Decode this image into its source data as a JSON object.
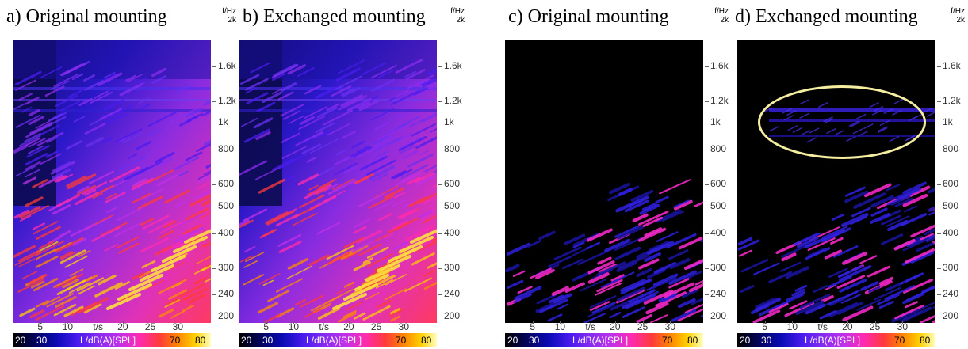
{
  "titles": [
    "a) Original mounting",
    "b) Exchanged mounting",
    "c) Original mounting",
    "d) Exchanged mounting"
  ],
  "axis": {
    "y_unit_top": "f/Hz",
    "y_unit_bottom": "2k",
    "x_unit": "t/s",
    "colorbar_label": "L/dB(A)[SPL]"
  },
  "chart_data": [
    {
      "type": "heatmap",
      "title": "a) Original mounting",
      "x": {
        "label": "t/s",
        "ticks": [
          5,
          10,
          20,
          25,
          30
        ],
        "range": [
          0,
          36
        ]
      },
      "y": {
        "label": "f/Hz",
        "scale": "log",
        "ticks": [
          "200",
          "240",
          "300",
          "400",
          "500",
          "600",
          "800",
          "1k",
          "1.2k",
          "1.6k",
          "2k"
        ],
        "range": [
          190,
          2000
        ]
      },
      "colorbar": {
        "label": "L/dB(A)[SPL]",
        "ticks": [
          20,
          30,
          70,
          80
        ],
        "range": [
          20,
          80
        ]
      }
    },
    {
      "type": "heatmap",
      "title": "b) Exchanged mounting",
      "x": {
        "label": "t/s",
        "ticks": [
          5,
          10,
          20,
          25,
          30
        ],
        "range": [
          0,
          36
        ]
      },
      "y": {
        "label": "f/Hz",
        "scale": "log",
        "ticks": [
          "200",
          "240",
          "300",
          "400",
          "500",
          "600",
          "800",
          "1k",
          "1.2k",
          "1.6k",
          "2k"
        ],
        "range": [
          190,
          2000
        ]
      },
      "colorbar": {
        "label": "L/dB(A)[SPL]",
        "ticks": [
          20,
          30,
          70,
          80
        ],
        "range": [
          20,
          80
        ]
      }
    },
    {
      "type": "heatmap",
      "title": "c) Original mounting",
      "x": {
        "label": "t/s",
        "ticks": [
          5,
          10,
          20,
          25,
          30
        ],
        "range": [
          0,
          36
        ]
      },
      "y": {
        "label": "f/Hz",
        "scale": "log",
        "ticks": [
          "200",
          "240",
          "300",
          "400",
          "500",
          "600",
          "800",
          "1k",
          "1.2k",
          "1.6k",
          "2k"
        ],
        "range": [
          190,
          2000
        ]
      },
      "colorbar": {
        "label": "L/dB(A)[SPL]",
        "ticks": [
          20,
          30,
          70,
          80
        ],
        "range": [
          20,
          80
        ]
      }
    },
    {
      "type": "heatmap",
      "title": "d) Exchanged mounting",
      "x": {
        "label": "t/s",
        "ticks": [
          5,
          10,
          20,
          25,
          30
        ],
        "range": [
          0,
          36
        ]
      },
      "y": {
        "label": "f/Hz",
        "scale": "log",
        "ticks": [
          "200",
          "240",
          "300",
          "400",
          "500",
          "600",
          "800",
          "1k",
          "1.2k",
          "1.6k",
          "2k"
        ],
        "range": [
          190,
          2000
        ]
      },
      "colorbar": {
        "label": "L/dB(A)[SPL]",
        "ticks": [
          20,
          30,
          70,
          80
        ],
        "range": [
          20,
          80
        ]
      },
      "annotation": {
        "shape": "ellipse",
        "color": "#f5eda0",
        "t_range": [
          5,
          36
        ],
        "f_range": [
          850,
          1150
        ]
      }
    }
  ],
  "colors": {
    "highlight": "#f5eda0"
  }
}
